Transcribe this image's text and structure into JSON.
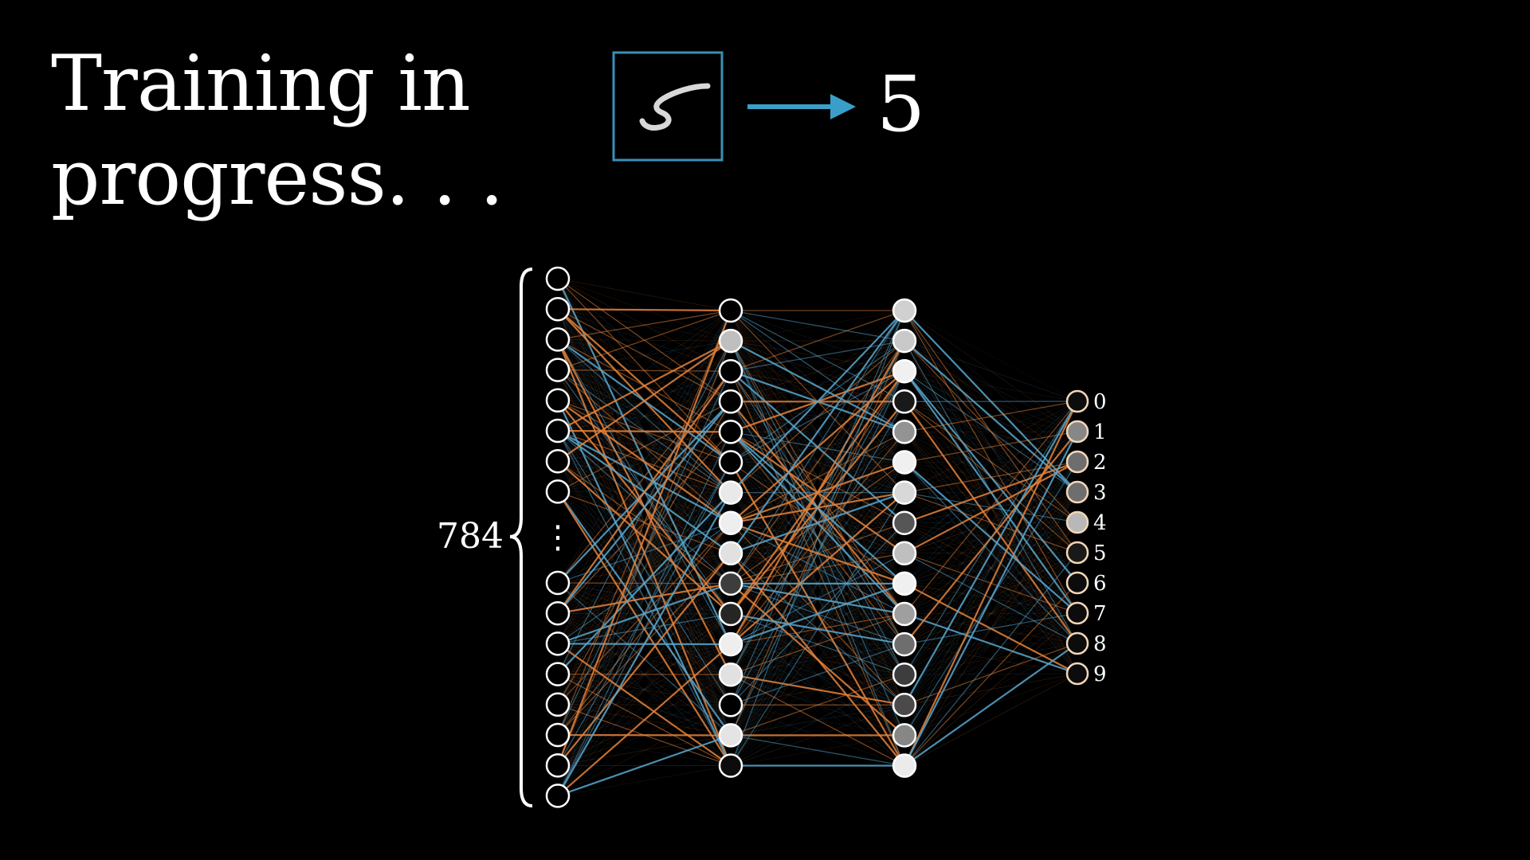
{
  "title": {
    "line1": "Training in",
    "line2": "progress. . ."
  },
  "input_example": {
    "predicted_label": "5",
    "frame_color": "#3a8fb7",
    "arrow_color": "#3a9fc8"
  },
  "network": {
    "input_count_label": "784",
    "input_layer": {
      "top_nodes": [
        0,
        0,
        0,
        0,
        0,
        0,
        0,
        0
      ],
      "bottom_nodes": [
        0,
        0,
        0,
        0,
        0,
        0,
        0,
        0
      ],
      "ellipsis": "⋮"
    },
    "hidden_layer_1": [
      0.0,
      0.78,
      0.0,
      0.0,
      0.0,
      0.0,
      0.95,
      0.97,
      0.92,
      0.25,
      0.15,
      0.97,
      0.92,
      0.0,
      0.93,
      0.05
    ],
    "hidden_layer_2": [
      0.85,
      0.82,
      0.98,
      0.1,
      0.6,
      0.98,
      0.88,
      0.35,
      0.78,
      0.98,
      0.65,
      0.45,
      0.25,
      0.3,
      0.55,
      0.96
    ],
    "output_layer": {
      "activations": [
        0.05,
        0.55,
        0.45,
        0.45,
        0.75,
        0.1,
        0.05,
        0.05,
        0.05,
        0.05
      ],
      "labels": [
        "0",
        "1",
        "2",
        "3",
        "4",
        "5",
        "6",
        "7",
        "8",
        "9"
      ]
    },
    "colors": {
      "positive_weight": "#e8833a",
      "negative_weight": "#58a8d0",
      "node_stroke": "#ffffff",
      "output_node_stroke": "#f1d6b8"
    }
  }
}
